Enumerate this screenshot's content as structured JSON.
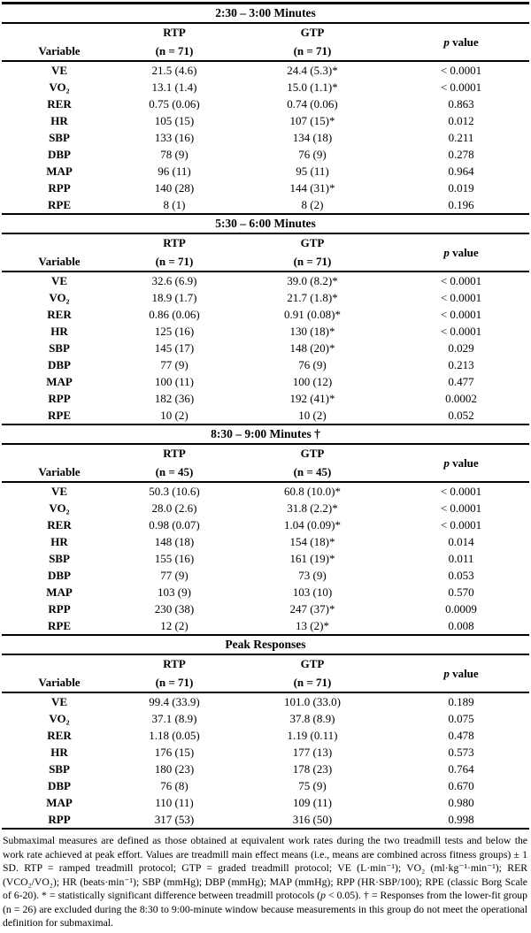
{
  "page": {
    "background_color": "#ffffff",
    "text_color": "#000000",
    "rule_color": "#000000"
  },
  "table": {
    "header": {
      "variable_label": "Variable",
      "rtp_label": "RTP",
      "gtp_label": "GTP",
      "p_label_italic": "p",
      "p_label_rest": " value"
    },
    "sections": [
      {
        "title": "2:30 – 3:00 Minutes",
        "rtp_n": "(n = 71)",
        "gtp_n": "(n = 71)",
        "rows": [
          {
            "variable": "VE",
            "rtp": "21.5 (4.6)",
            "gtp": "24.4 (5.3)*",
            "p": "< 0.0001"
          },
          {
            "variable": "VO₂",
            "rtp": "13.1 (1.4)",
            "gtp": "15.0 (1.1)*",
            "p": "< 0.0001"
          },
          {
            "variable": "RER",
            "rtp": "0.75 (0.06)",
            "gtp": "0.74 (0.06)",
            "p": "0.863"
          },
          {
            "variable": "HR",
            "rtp": "105 (15)",
            "gtp": "107 (15)*",
            "p": "0.012"
          },
          {
            "variable": "SBP",
            "rtp": "133 (16)",
            "gtp": "134 (18)",
            "p": "0.211"
          },
          {
            "variable": "DBP",
            "rtp": "78 (9)",
            "gtp": "76 (9)",
            "p": "0.278"
          },
          {
            "variable": "MAP",
            "rtp": "96 (11)",
            "gtp": "95 (11)",
            "p": "0.964"
          },
          {
            "variable": "RPP",
            "rtp": "140 (28)",
            "gtp": "144 (31)*",
            "p": "0.019"
          },
          {
            "variable": "RPE",
            "rtp": "8 (1)",
            "gtp": "8 (2)",
            "p": "0.196"
          }
        ]
      },
      {
        "title": "5:30 – 6:00 Minutes",
        "rtp_n": "(n = 71)",
        "gtp_n": "(n = 71)",
        "rows": [
          {
            "variable": "VE",
            "rtp": "32.6 (6.9)",
            "gtp": "39.0 (8.2)*",
            "p": "< 0.0001"
          },
          {
            "variable": "VO₂",
            "rtp": "18.9 (1.7)",
            "gtp": "21.7 (1.8)*",
            "p": "< 0.0001"
          },
          {
            "variable": "RER",
            "rtp": "0.86 (0.06)",
            "gtp": "0.91 (0.08)*",
            "p": "< 0.0001"
          },
          {
            "variable": "HR",
            "rtp": "125 (16)",
            "gtp": "130 (18)*",
            "p": "< 0.0001"
          },
          {
            "variable": "SBP",
            "rtp": "145 (17)",
            "gtp": "148 (20)*",
            "p": "0.029"
          },
          {
            "variable": "DBP",
            "rtp": "77 (9)",
            "gtp": "76 (9)",
            "p": "0.213"
          },
          {
            "variable": "MAP",
            "rtp": "100 (11)",
            "gtp": "100 (12)",
            "p": "0.477"
          },
          {
            "variable": "RPP",
            "rtp": "182 (36)",
            "gtp": "192 (41)*",
            "p": "0.0002"
          },
          {
            "variable": "RPE",
            "rtp": "10 (2)",
            "gtp": "10 (2)",
            "p": "0.052"
          }
        ]
      },
      {
        "title": "8:30 – 9:00 Minutes †",
        "rtp_n": "(n = 45)",
        "gtp_n": "(n = 45)",
        "rows": [
          {
            "variable": "VE",
            "rtp": "50.3 (10.6)",
            "gtp": "60.8 (10.0)*",
            "p": "< 0.0001"
          },
          {
            "variable": "VO₂",
            "rtp": "28.0 (2.6)",
            "gtp": "31.8 (2.2)*",
            "p": "< 0.0001"
          },
          {
            "variable": "RER",
            "rtp": "0.98 (0.07)",
            "gtp": "1.04 (0.09)*",
            "p": "< 0.0001"
          },
          {
            "variable": "HR",
            "rtp": "148 (18)",
            "gtp": "154 (18)*",
            "p": "0.014"
          },
          {
            "variable": "SBP",
            "rtp": "155 (16)",
            "gtp": "161 (19)*",
            "p": "0.011"
          },
          {
            "variable": "DBP",
            "rtp": "77 (9)",
            "gtp": "73 (9)",
            "p": "0.053"
          },
          {
            "variable": "MAP",
            "rtp": "103 (9)",
            "gtp": "103 (10)",
            "p": "0.570"
          },
          {
            "variable": "RPP",
            "rtp": "230 (38)",
            "gtp": "247 (37)*",
            "p": "0.0009"
          },
          {
            "variable": "RPE",
            "rtp": "12 (2)",
            "gtp": "13 (2)*",
            "p": "0.008"
          }
        ]
      },
      {
        "title": "Peak Responses",
        "rtp_n": "(n = 71)",
        "gtp_n": "(n = 71)",
        "rows": [
          {
            "variable": "VE",
            "rtp": "99.4 (33.9)",
            "gtp": "101.0 (33.0)",
            "p": "0.189"
          },
          {
            "variable": "VO₂",
            "rtp": "37.1 (8.9)",
            "gtp": "37.8 (8.9)",
            "p": "0.075"
          },
          {
            "variable": "RER",
            "rtp": "1.18 (0.05)",
            "gtp": "1.19 (0.11)",
            "p": "0.478"
          },
          {
            "variable": "HR",
            "rtp": "176 (15)",
            "gtp": "177 (13)",
            "p": "0.573"
          },
          {
            "variable": "SBP",
            "rtp": "180 (23)",
            "gtp": "178 (23)",
            "p": "0.764"
          },
          {
            "variable": "DBP",
            "rtp": "76 (8)",
            "gtp": "75 (9)",
            "p": "0.670"
          },
          {
            "variable": "MAP",
            "rtp": "110 (11)",
            "gtp": "109 (11)",
            "p": "0.980"
          },
          {
            "variable": "RPP",
            "rtp": "317 (53)",
            "gtp": "316 (50)",
            "p": "0.998"
          }
        ]
      }
    ]
  },
  "footnote": {
    "segments": [
      {
        "text": "Submaximal measures are defined as those obtained at equivalent work rates during the two treadmill tests and below the work rate achieved at peak effort. Values are treadmill main effect means (i.e., means are combined across fitness groups) ± 1 SD. RTP = ramped treadmill protocol; GTP = graded treadmill protocol; VE (L·min⁻¹); VO₂ (ml·kg⁻¹·min⁻¹); RER (VCO₂/VO₂); HR (beats·min⁻¹); SBP (mmHg); DBP (mmHg); MAP (mmHg); RPP (HR·SBP/100); RPE (classic Borg Scale of 6-20). * = statistically significant difference between treadmill protocols (",
        "italic": false
      },
      {
        "text": "p",
        "italic": true
      },
      {
        "text": " < 0.05). † = Responses from the lower-fit group (n = 26) are excluded during the 8:30 to 9:00-minute window because measurements in this group do not meet the operational definition for submaximal.",
        "italic": false
      }
    ]
  }
}
